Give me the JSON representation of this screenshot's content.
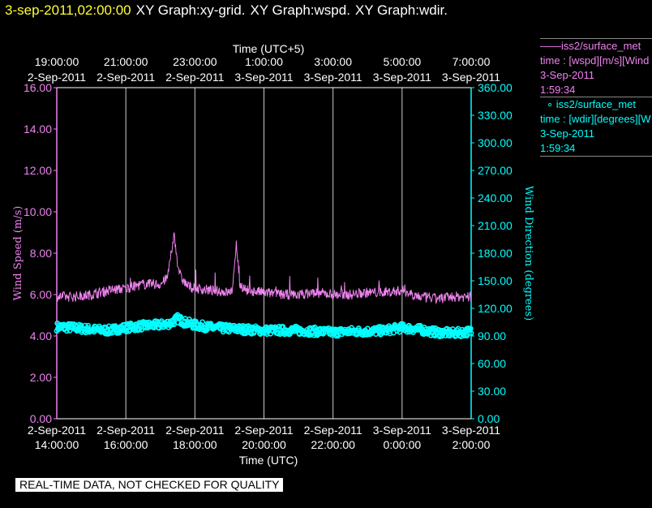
{
  "header": {
    "timestamp": "3-sep-2011,02:00:00",
    "graphs": [
      "XY Graph:xy-grid.",
      "XY Graph:wspd.",
      "XY Graph:wdir."
    ]
  },
  "legend": [
    {
      "symbol": "——",
      "source": "iss2/surface_met",
      "line1": "time : [wspd][m/s][Wind",
      "date": "3-Sep-2011",
      "time": "1:59:34",
      "color": "#ee82ee"
    },
    {
      "symbol": "∘",
      "source": "iss2/surface_met",
      "line1": "time : [wdir][degrees][W",
      "date": "3-Sep-2011",
      "time": "1:59:34",
      "color": "#00ffff"
    }
  ],
  "quality_note": "REAL-TIME DATA, NOT CHECKED FOR QUALITY",
  "chart_data": {
    "type": "line",
    "xlabel_top": "Time (UTC+5)",
    "xlabel": "Time (UTC)",
    "ylabel": "Wind Speed (m/s)",
    "y2label": "Wind Direction (degrees)",
    "xlim_hours": [
      14,
      26
    ],
    "ylim": [
      0,
      16
    ],
    "y2lim": [
      0,
      360
    ],
    "y_ticks": [
      "0.00",
      "2.00",
      "4.00",
      "6.00",
      "8.00",
      "10.00",
      "12.00",
      "14.00",
      "16.00"
    ],
    "y2_ticks": [
      "0.00",
      "30.00",
      "60.00",
      "90.00",
      "120.00",
      "150.00",
      "180.00",
      "210.00",
      "240.00",
      "270.00",
      "300.00",
      "330.00",
      "360.00"
    ],
    "x_ticks_bottom": [
      {
        "date": "2-Sep-2011",
        "time": "14:00:00"
      },
      {
        "date": "2-Sep-2011",
        "time": "16:00:00"
      },
      {
        "date": "2-Sep-2011",
        "time": "18:00:00"
      },
      {
        "date": "2-Sep-2011",
        "time": "20:00:00"
      },
      {
        "date": "2-Sep-2011",
        "time": "22:00:00"
      },
      {
        "date": "3-Sep-2011",
        "time": "0:00:00"
      },
      {
        "date": "3-Sep-2011",
        "time": "2:00:00"
      }
    ],
    "x_ticks_top": [
      {
        "date": "2-Sep-2011",
        "time": "19:00:00"
      },
      {
        "date": "2-Sep-2011",
        "time": "21:00:00"
      },
      {
        "date": "2-Sep-2011",
        "time": "23:00:00"
      },
      {
        "date": "3-Sep-2011",
        "time": "1:00:00"
      },
      {
        "date": "3-Sep-2011",
        "time": "3:00:00"
      },
      {
        "date": "3-Sep-2011",
        "time": "5:00:00"
      },
      {
        "date": "3-Sep-2011",
        "time": "7:00:00"
      }
    ],
    "series": [
      {
        "name": "iss2/surface_met wspd",
        "color": "#ee82ee",
        "x_hours": [
          14.0,
          14.5,
          15.0,
          15.5,
          16.0,
          16.5,
          17.0,
          17.2,
          17.3,
          17.4,
          17.5,
          17.6,
          17.7,
          17.8,
          18.0,
          18.5,
          19.0,
          19.1,
          19.2,
          19.3,
          19.5,
          20.0,
          20.5,
          21.0,
          21.5,
          22.0,
          22.5,
          23.0,
          23.5,
          24.0,
          24.5,
          25.0,
          25.5,
          26.0
        ],
        "values": [
          5.9,
          5.9,
          6.0,
          6.2,
          6.3,
          6.5,
          6.5,
          6.8,
          7.8,
          8.9,
          7.5,
          6.8,
          6.6,
          6.4,
          6.3,
          6.2,
          6.1,
          6.3,
          8.6,
          6.5,
          6.2,
          6.1,
          6.0,
          6.0,
          6.1,
          6.0,
          6.0,
          6.1,
          6.1,
          6.2,
          5.9,
          5.8,
          5.9,
          5.9
        ]
      },
      {
        "name": "iss2/surface_met wdir",
        "color": "#00ffff",
        "axis": "y2",
        "x_hours": [
          14.0,
          14.5,
          15.0,
          15.5,
          16.0,
          16.5,
          17.0,
          17.3,
          17.5,
          17.7,
          18.0,
          18.5,
          19.0,
          19.5,
          20.0,
          20.5,
          21.0,
          21.5,
          22.0,
          22.5,
          23.0,
          23.5,
          24.0,
          24.5,
          25.0,
          25.5,
          26.0
        ],
        "values": [
          100,
          99,
          97,
          96,
          99,
          101,
          102,
          104,
          109,
          105,
          102,
          99,
          98,
          97,
          96,
          96,
          96,
          95,
          94,
          95,
          95,
          96,
          99,
          97,
          94,
          93,
          95
        ]
      }
    ]
  }
}
